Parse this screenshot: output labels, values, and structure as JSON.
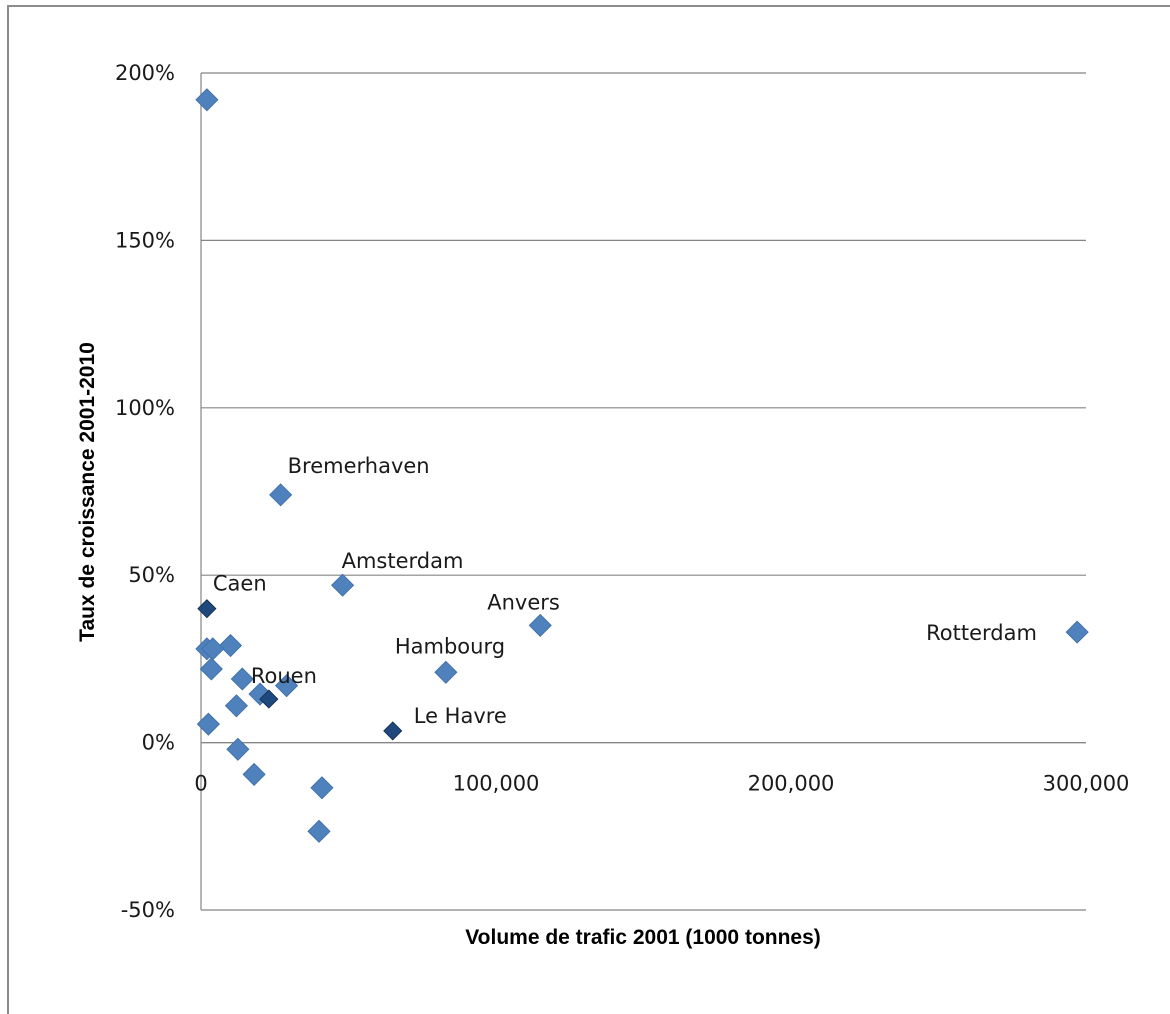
{
  "chart_data": {
    "type": "scatter",
    "title": "",
    "xlabel": "Volume de trafic 2001 (1000 tonnes)",
    "ylabel": "Taux de croissance 2001-2010",
    "xlim": [
      0,
      300000
    ],
    "ylim": [
      -0.5,
      2.0
    ],
    "x_ticks": [
      0,
      100000,
      200000,
      300000
    ],
    "x_tick_labels": [
      "0",
      "100,000",
      "200,000",
      "300,000"
    ],
    "y_ticks": [
      -0.5,
      0,
      0.5,
      1.0,
      1.5,
      2.0
    ],
    "y_tick_labels": [
      "-50%",
      "0%",
      "50%",
      "100%",
      "150%",
      "200%"
    ],
    "grid": "horizontal",
    "legend": "none",
    "colors": {
      "marker": "#4f81bd",
      "highlight": "#1f497d",
      "grid": "#858585"
    },
    "points": [
      {
        "x": 2000,
        "y": 1.92
      },
      {
        "x": 27000,
        "y": 0.74,
        "label": "Bremerhaven"
      },
      {
        "x": 48000,
        "y": 0.47,
        "label": "Amsterdam"
      },
      {
        "x": 2000,
        "y": 0.4,
        "label": "Caen",
        "highlight": true
      },
      {
        "x": 115000,
        "y": 0.35,
        "label": "Anvers"
      },
      {
        "x": 297000,
        "y": 0.33,
        "label": "Rotterdam"
      },
      {
        "x": 10000,
        "y": 0.29
      },
      {
        "x": 2000,
        "y": 0.28
      },
      {
        "x": 4000,
        "y": 0.28
      },
      {
        "x": 3500,
        "y": 0.22
      },
      {
        "x": 83000,
        "y": 0.21,
        "label": "Hambourg"
      },
      {
        "x": 14000,
        "y": 0.19
      },
      {
        "x": 29000,
        "y": 0.17
      },
      {
        "x": 20000,
        "y": 0.145
      },
      {
        "x": 23000,
        "y": 0.13,
        "label": "Rouen",
        "highlight": true
      },
      {
        "x": 12000,
        "y": 0.11
      },
      {
        "x": 2500,
        "y": 0.055
      },
      {
        "x": 65000,
        "y": 0.035,
        "label": "Le Havre",
        "highlight": true
      },
      {
        "x": 12500,
        "y": -0.02
      },
      {
        "x": 18000,
        "y": -0.095
      },
      {
        "x": 41000,
        "y": -0.135
      },
      {
        "x": 40000,
        "y": -0.265
      }
    ]
  }
}
